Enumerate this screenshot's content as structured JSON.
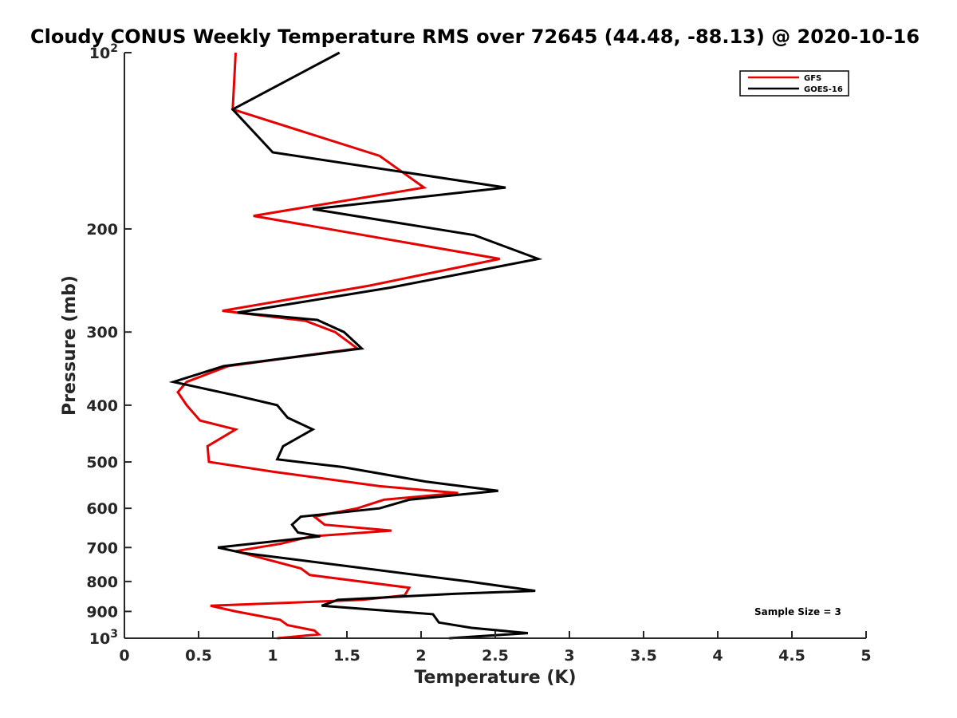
{
  "chart_data": {
    "type": "line",
    "title": "Cloudy CONUS Weekly Temperature RMS over 72645 (44.48, -88.13) @ 2020-10-16",
    "xlabel": "Temperature (K)",
    "ylabel": "Pressure (mb)",
    "xlim": [
      0,
      5
    ],
    "ylim": [
      100,
      1000
    ],
    "y_scale": "log",
    "y_reversed": true,
    "grid": false,
    "legend_position": "top-right",
    "x_ticks": [
      0,
      0.5,
      1,
      1.5,
      2,
      2.5,
      3,
      3.5,
      4,
      4.5,
      5
    ],
    "x_tick_labels": [
      "0",
      "0.5",
      "1",
      "1.5",
      "2",
      "2.5",
      "3",
      "3.5",
      "4",
      "4.5",
      "5"
    ],
    "y_ticks": [
      100,
      200,
      300,
      400,
      500,
      600,
      700,
      800,
      900,
      1000
    ],
    "y_tick_labels": [
      {
        "base": "10",
        "exp": "2"
      },
      {
        "base": "200",
        "exp": ""
      },
      {
        "base": "300",
        "exp": ""
      },
      {
        "base": "400",
        "exp": ""
      },
      {
        "base": "500",
        "exp": ""
      },
      {
        "base": "600",
        "exp": ""
      },
      {
        "base": "700",
        "exp": ""
      },
      {
        "base": "800",
        "exp": ""
      },
      {
        "base": "900",
        "exp": ""
      },
      {
        "base": "10",
        "exp": "3"
      }
    ],
    "series": [
      {
        "name": "GFS",
        "color": "#e60000",
        "points": [
          [
            0.75,
            100
          ],
          [
            0.73,
            125
          ],
          [
            1.72,
            150
          ],
          [
            2.02,
            170
          ],
          [
            0.87,
            190
          ],
          [
            2.53,
            225
          ],
          [
            1.65,
            250
          ],
          [
            0.66,
            276
          ],
          [
            1.22,
            287
          ],
          [
            1.42,
            300
          ],
          [
            1.57,
            320
          ],
          [
            0.7,
            343
          ],
          [
            0.42,
            365
          ],
          [
            0.36,
            380
          ],
          [
            0.42,
            400
          ],
          [
            0.51,
            425
          ],
          [
            0.75,
            440
          ],
          [
            0.56,
            470
          ],
          [
            0.57,
            500
          ],
          [
            1.01,
            520
          ],
          [
            1.72,
            550
          ],
          [
            2.25,
            565
          ],
          [
            1.75,
            580
          ],
          [
            1.57,
            600
          ],
          [
            1.28,
            620
          ],
          [
            1.35,
            640
          ],
          [
            1.8,
            655
          ],
          [
            1.26,
            670
          ],
          [
            1.05,
            690
          ],
          [
            0.75,
            710
          ],
          [
            1.19,
            760
          ],
          [
            1.25,
            780
          ],
          [
            1.92,
            820
          ],
          [
            1.89,
            845
          ],
          [
            1.6,
            860
          ],
          [
            0.58,
            880
          ],
          [
            0.75,
            900
          ],
          [
            1.05,
            930
          ],
          [
            1.1,
            950
          ],
          [
            1.28,
            970
          ],
          [
            1.31,
            985
          ],
          [
            1.03,
            1000
          ]
        ]
      },
      {
        "name": "GOES-16",
        "color": "#000000",
        "points": [
          [
            1.45,
            100
          ],
          [
            0.73,
            125
          ],
          [
            1.0,
            148
          ],
          [
            2.57,
            170
          ],
          [
            1.27,
            185
          ],
          [
            2.36,
            205
          ],
          [
            2.79,
            225
          ],
          [
            1.79,
            252
          ],
          [
            0.76,
            278
          ],
          [
            1.3,
            286
          ],
          [
            1.48,
            300
          ],
          [
            1.6,
            320
          ],
          [
            0.67,
            343
          ],
          [
            0.33,
            365
          ],
          [
            0.75,
            385
          ],
          [
            1.03,
            400
          ],
          [
            1.1,
            420
          ],
          [
            1.27,
            440
          ],
          [
            1.07,
            470
          ],
          [
            1.03,
            495
          ],
          [
            1.47,
            510
          ],
          [
            2.03,
            540
          ],
          [
            2.52,
            560
          ],
          [
            1.92,
            580
          ],
          [
            1.72,
            600
          ],
          [
            1.19,
            620
          ],
          [
            1.13,
            640
          ],
          [
            1.17,
            660
          ],
          [
            1.32,
            670
          ],
          [
            0.63,
            700
          ],
          [
            0.8,
            715
          ],
          [
            2.32,
            800
          ],
          [
            2.77,
            830
          ],
          [
            2.22,
            840
          ],
          [
            1.44,
            860
          ],
          [
            1.33,
            880
          ],
          [
            2.08,
            910
          ],
          [
            2.12,
            940
          ],
          [
            2.34,
            960
          ],
          [
            2.72,
            980
          ],
          [
            2.19,
            1000
          ]
        ]
      }
    ],
    "annotation": "Sample Size = 3"
  }
}
